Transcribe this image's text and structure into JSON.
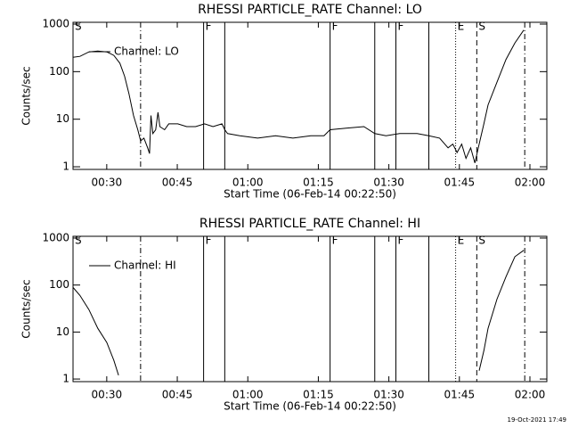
{
  "chart_data": [
    {
      "type": "line",
      "title": "RHESSI PARTICLE_RATE Channel: LO",
      "xlabel": "Start Time (06-Feb-14 00:22:50)",
      "ylabel": "Counts/sec",
      "x": [
        22.8,
        24.3,
        26.2,
        28.1,
        30.0,
        31.5,
        32.8,
        33.8,
        34.7,
        35.7,
        36.6,
        37.2,
        37.9,
        38.7,
        39.1,
        39.4,
        39.8,
        40.4,
        40.9,
        41.3,
        42.3,
        43.2,
        45.1,
        47.0,
        48.9,
        50.8,
        52.6,
        54.5,
        55.1,
        55.7,
        58.3,
        62.1,
        65.9,
        69.6,
        73.4,
        76.2,
        77.5,
        80.9,
        84.7,
        87.0,
        89.4,
        92.3,
        96.0,
        98.5,
        100.8,
        102.6,
        103.6,
        104.5,
        105.5,
        106.4,
        107.4,
        108.3,
        109.2,
        110.2,
        111.1,
        113.0,
        114.9,
        116.8,
        118.7
      ],
      "series": [
        {
          "name": "Channel: LO",
          "color": "#000000",
          "values": [
            200,
            210,
            260,
            270,
            260,
            220,
            150,
            80,
            35,
            12,
            6,
            3.5,
            4,
            2.5,
            1.9,
            12,
            5,
            6,
            14,
            7,
            6,
            8,
            8,
            7,
            7,
            8,
            7,
            8,
            6,
            5,
            4.5,
            4,
            4.5,
            4,
            4.5,
            4.5,
            6,
            6.5,
            7,
            5,
            4.5,
            5,
            5,
            4.5,
            4,
            2.5,
            3,
            2,
            3,
            1.5,
            2.5,
            1.2,
            3,
            8,
            20,
            60,
            180,
            400,
            750
          ]
        }
      ],
      "xlim": [
        22.83,
        123.6
      ],
      "ylim": [
        0.88,
        1090
      ],
      "log_y": true,
      "legend": "upper left",
      "xticks": [
        {
          "value": 30,
          "label": "00:30"
        },
        {
          "value": 45,
          "label": "00:45"
        },
        {
          "value": 60,
          "label": "01:00"
        },
        {
          "value": 75,
          "label": "01:15"
        },
        {
          "value": 90,
          "label": "01:30"
        },
        {
          "value": 105,
          "label": "01:45"
        },
        {
          "value": 120,
          "label": "02:00"
        }
      ],
      "yticks": [
        1,
        10,
        100,
        1000
      ],
      "events": [
        {
          "x": 22.83,
          "label": "S",
          "style": "solid"
        },
        {
          "x": 37.2,
          "label": null,
          "style": "dashdot"
        },
        {
          "x": 50.6,
          "label": "F",
          "style": "solid"
        },
        {
          "x": 55.1,
          "label": null,
          "style": "solid"
        },
        {
          "x": 77.5,
          "label": "F",
          "style": "solid"
        },
        {
          "x": 87.0,
          "label": null,
          "style": "solid"
        },
        {
          "x": 91.5,
          "label": "F",
          "style": "solid"
        },
        {
          "x": 98.5,
          "label": null,
          "style": "solid"
        },
        {
          "x": 104.2,
          "label": "E",
          "style": "dotted"
        },
        {
          "x": 108.7,
          "label": "S",
          "style": "dashed"
        },
        {
          "x": 118.9,
          "label": null,
          "style": "dashdot"
        }
      ]
    },
    {
      "type": "line",
      "title": "RHESSI PARTICLE_RATE Channel: HI",
      "xlabel": "Start Time (06-Feb-14 00:22:50)",
      "ylabel": "Counts/sec",
      "x": [
        22.8,
        24.3,
        26.2,
        28.1,
        30.0,
        31.5,
        32.5,
        33.0,
        109.2,
        110.2,
        111.1,
        113.0,
        114.9,
        116.8,
        118.7
      ],
      "series": [
        {
          "name": "Channel: HI",
          "color": "#000000",
          "values": [
            90,
            60,
            30,
            12,
            6,
            2.5,
            1.2,
            null,
            1.5,
            4,
            12,
            50,
            150,
            400,
            550
          ]
        }
      ],
      "xlim": [
        22.83,
        123.6
      ],
      "ylim": [
        0.88,
        1090
      ],
      "log_y": true,
      "legend": "upper left",
      "xticks": [
        {
          "value": 30,
          "label": "00:30"
        },
        {
          "value": 45,
          "label": "00:45"
        },
        {
          "value": 60,
          "label": "01:00"
        },
        {
          "value": 75,
          "label": "01:15"
        },
        {
          "value": 90,
          "label": "01:30"
        },
        {
          "value": 105,
          "label": "01:45"
        },
        {
          "value": 120,
          "label": "02:00"
        }
      ],
      "yticks": [
        1,
        10,
        100,
        1000
      ],
      "events": [
        {
          "x": 22.83,
          "label": "S",
          "style": "solid"
        },
        {
          "x": 37.2,
          "label": null,
          "style": "dashdot"
        },
        {
          "x": 50.6,
          "label": "F",
          "style": "solid"
        },
        {
          "x": 55.1,
          "label": null,
          "style": "solid"
        },
        {
          "x": 77.5,
          "label": "F",
          "style": "solid"
        },
        {
          "x": 87.0,
          "label": null,
          "style": "solid"
        },
        {
          "x": 91.5,
          "label": "F",
          "style": "solid"
        },
        {
          "x": 98.5,
          "label": null,
          "style": "solid"
        },
        {
          "x": 104.2,
          "label": "E",
          "style": "dotted"
        },
        {
          "x": 108.7,
          "label": "S",
          "style": "dashed"
        },
        {
          "x": 118.9,
          "label": null,
          "style": "dashdot"
        }
      ]
    }
  ],
  "footer": "19-Oct-2021 17:49"
}
